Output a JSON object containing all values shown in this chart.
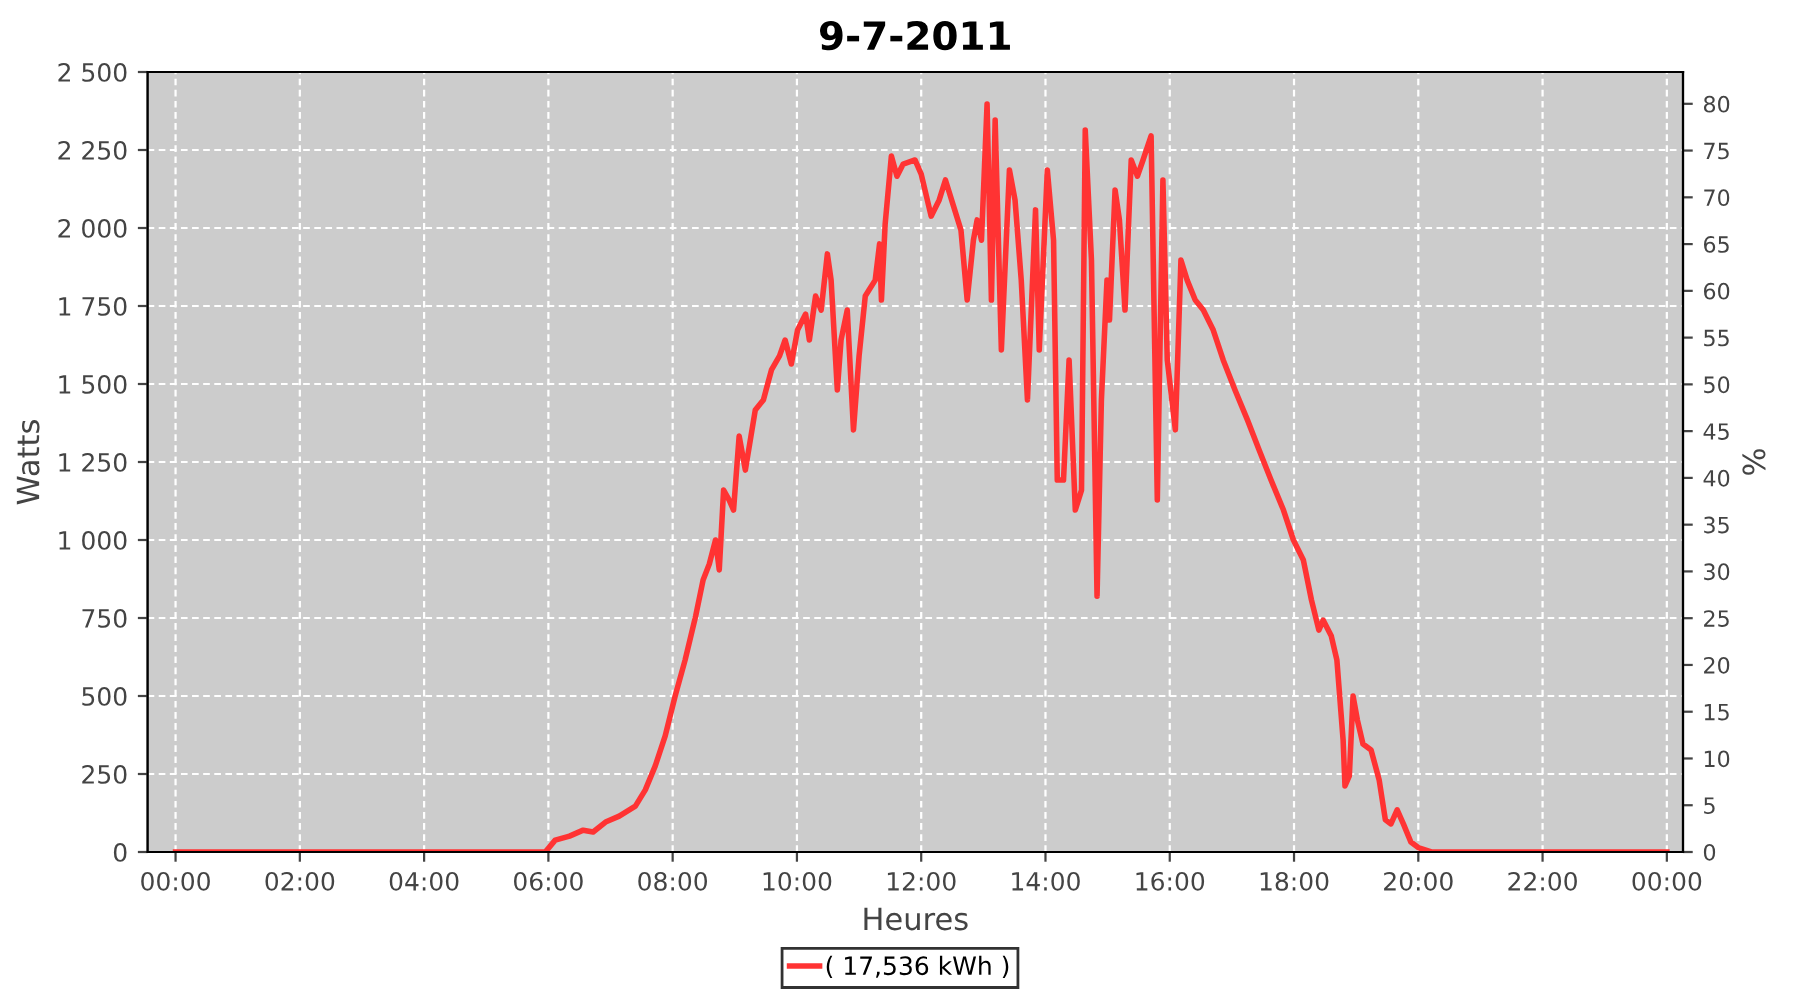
{
  "chart_data": {
    "type": "line",
    "title": "9-7-2011",
    "xlabel": "Heures",
    "ylabel": "Watts",
    "y2label": "%",
    "xlim": [
      -0.45,
      24.26
    ],
    "xticks": [
      {
        "value": 0,
        "label": "00:00"
      },
      {
        "value": 2,
        "label": "02:00"
      },
      {
        "value": 4,
        "label": "04:00"
      },
      {
        "value": 6,
        "label": "06:00"
      },
      {
        "value": 8,
        "label": "08:00"
      },
      {
        "value": 10,
        "label": "10:00"
      },
      {
        "value": 12,
        "label": "12:00"
      },
      {
        "value": 14,
        "label": "14:00"
      },
      {
        "value": 16,
        "label": "16:00"
      },
      {
        "value": 18,
        "label": "18:00"
      },
      {
        "value": 20,
        "label": "20:00"
      },
      {
        "value": 22,
        "label": "22:00"
      },
      {
        "value": 24,
        "label": "00:00"
      }
    ],
    "ylim": [
      0,
      2500
    ],
    "yticks": [
      0,
      250,
      500,
      750,
      {
        "value": 1000,
        "label": "1 000"
      },
      {
        "value": 1250,
        "label": "1 250"
      },
      {
        "value": 1500,
        "label": "1 500"
      },
      {
        "value": 1750,
        "label": "1 750"
      },
      {
        "value": 2000,
        "label": "2 000"
      },
      {
        "value": 2250,
        "label": "2 250"
      },
      {
        "value": 2500,
        "label": "2 500"
      }
    ],
    "y2lim": [
      0,
      83.4
    ],
    "y2ticks": [
      0,
      5,
      10,
      15,
      20,
      25,
      30,
      35,
      40,
      45,
      50,
      55,
      60,
      65,
      70,
      75,
      80
    ],
    "grid": true,
    "legend": "bottom",
    "marker": "none",
    "line_style": "solid",
    "series": [
      {
        "name": "( 17,536 kWh )",
        "color": "#ff3333",
        "x": [
          0,
          2,
          4,
          5.95,
          6.11,
          6.34,
          6.56,
          6.72,
          6.92,
          7.14,
          7.4,
          7.56,
          7.72,
          7.88,
          8.04,
          8.2,
          8.37,
          8.49,
          8.59,
          8.69,
          8.75,
          8.82,
          8.91,
          8.98,
          9.07,
          9.17,
          9.33,
          9.46,
          9.59,
          9.72,
          9.81,
          9.91,
          10.01,
          10.14,
          10.2,
          10.3,
          10.39,
          10.49,
          10.55,
          10.65,
          10.71,
          10.81,
          10.91,
          11.0,
          11.1,
          11.16,
          11.26,
          11.33,
          11.36,
          11.42,
          11.52,
          11.61,
          11.71,
          11.9,
          12.0,
          12.16,
          12.29,
          12.39,
          12.52,
          12.64,
          12.74,
          12.84,
          12.9,
          12.97,
          13.06,
          13.13,
          13.19,
          13.29,
          13.42,
          13.51,
          13.61,
          13.71,
          13.84,
          13.9,
          14.03,
          14.13,
          14.19,
          14.29,
          14.38,
          14.48,
          14.58,
          14.64,
          14.74,
          14.83,
          14.9,
          14.99,
          15.03,
          15.12,
          15.19,
          15.28,
          15.38,
          15.48,
          15.57,
          15.7,
          15.8,
          15.89,
          15.96,
          16.09,
          16.18,
          16.28,
          16.41,
          16.54,
          16.7,
          16.86,
          17.05,
          17.25,
          17.44,
          17.63,
          17.83,
          17.99,
          18.15,
          18.28,
          18.4,
          18.47,
          18.6,
          18.69,
          18.79,
          18.82,
          18.89,
          18.95,
          19.02,
          19.11,
          19.24,
          19.37,
          19.47,
          19.56,
          19.66,
          19.76,
          19.88,
          20.01,
          20.21,
          22,
          24
        ],
        "values": [
          0,
          0,
          0,
          0,
          38,
          51,
          70,
          64,
          96,
          115,
          147,
          199,
          276,
          372,
          500,
          615,
          756,
          872,
          923,
          1000,
          904,
          1160,
          1128,
          1096,
          1333,
          1224,
          1417,
          1449,
          1545,
          1590,
          1641,
          1564,
          1673,
          1724,
          1641,
          1782,
          1737,
          1917,
          1833,
          1481,
          1641,
          1737,
          1353,
          1590,
          1782,
          1801,
          1833,
          1949,
          1769,
          2013,
          2231,
          2166,
          2205,
          2218,
          2173,
          2038,
          2090,
          2154,
          2070,
          1993,
          1769,
          1961,
          2026,
          1961,
          2397,
          1769,
          2346,
          1609,
          2186,
          2090,
          1833,
          1449,
          2058,
          1609,
          2186,
          1961,
          1192,
          1192,
          1577,
          1096,
          1160,
          2314,
          1897,
          820,
          1449,
          1833,
          1705,
          2122,
          2026,
          1737,
          2218,
          2166,
          2218,
          2295,
          1128,
          2154,
          1577,
          1353,
          1897,
          1833,
          1769,
          1737,
          1673,
          1577,
          1481,
          1385,
          1288,
          1192,
          1096,
          1000,
          936,
          808,
          711,
          743,
          692,
          615,
          359,
          212,
          244,
          500,
          423,
          346,
          327,
          231,
          103,
          90,
          135,
          90,
          32,
          13,
          0,
          0,
          0
        ]
      }
    ]
  }
}
